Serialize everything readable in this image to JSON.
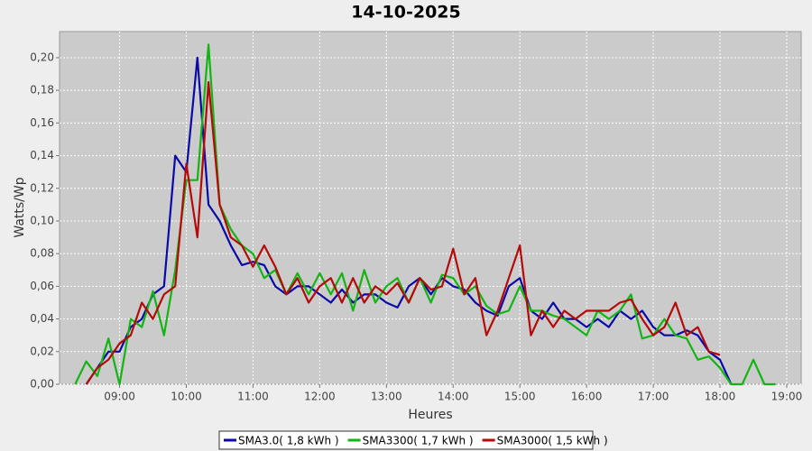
{
  "chart_data": {
    "type": "line",
    "title": "14-10-2025",
    "xlabel": "Heures",
    "ylabel": "Watts/Wp",
    "x": [
      500,
      510,
      520,
      530,
      540,
      550,
      560,
      570,
      580,
      590,
      600,
      610,
      620,
      630,
      640,
      650,
      660,
      670,
      680,
      690,
      700,
      710,
      720,
      730,
      740,
      750,
      760,
      770,
      780,
      790,
      800,
      810,
      820,
      830,
      840,
      850,
      860,
      870,
      880,
      890,
      900,
      910,
      920,
      930,
      940,
      950,
      960,
      970,
      980,
      990,
      1000,
      1010,
      1020,
      1030,
      1040,
      1050,
      1060,
      1070,
      1080,
      1090,
      1100,
      1110,
      1120,
      1130
    ],
    "series": [
      {
        "name": "SMA3.0( 1,8 kWh )",
        "color": "#0a0aa8",
        "values": [
          null,
          0.0,
          0.01,
          0.02,
          0.02,
          0.035,
          0.04,
          0.055,
          0.06,
          0.14,
          0.13,
          0.2,
          0.11,
          0.1,
          0.085,
          0.073,
          0.075,
          0.073,
          0.06,
          0.055,
          0.06,
          0.06,
          0.055,
          0.05,
          0.058,
          0.05,
          0.055,
          0.055,
          0.05,
          0.047,
          0.06,
          0.065,
          0.055,
          0.065,
          0.06,
          0.058,
          0.05,
          0.045,
          0.042,
          0.06,
          0.065,
          0.045,
          0.04,
          0.05,
          0.04,
          0.04,
          0.035,
          0.04,
          0.035,
          0.045,
          0.04,
          0.045,
          0.035,
          0.03,
          0.03,
          0.033,
          0.03,
          0.02,
          0.015,
          0.0,
          null,
          null,
          null,
          null
        ]
      },
      {
        "name": "SMA3300( 1,7 kWh )",
        "color": "#14b414",
        "values": [
          0.0,
          0.014,
          0.005,
          0.028,
          0.0,
          0.04,
          0.035,
          0.057,
          0.03,
          0.07,
          0.125,
          0.125,
          0.208,
          0.11,
          0.095,
          0.085,
          0.08,
          0.065,
          0.07,
          0.055,
          0.068,
          0.055,
          0.068,
          0.055,
          0.068,
          0.045,
          0.07,
          0.05,
          0.06,
          0.065,
          0.05,
          0.065,
          0.05,
          0.067,
          0.065,
          0.055,
          0.06,
          0.048,
          0.043,
          0.045,
          0.06,
          0.045,
          0.045,
          0.042,
          0.04,
          0.035,
          0.03,
          0.045,
          0.04,
          0.045,
          0.055,
          0.028,
          0.03,
          0.04,
          0.03,
          0.028,
          0.015,
          0.017,
          0.01,
          0.0,
          0.0,
          0.015,
          0.0,
          0.0
        ]
      },
      {
        "name": "SMA3000( 1,5 kWh )",
        "color": "#b40a0a",
        "values": [
          null,
          0.0,
          0.01,
          0.015,
          0.025,
          0.03,
          0.05,
          0.04,
          0.055,
          0.06,
          0.135,
          0.09,
          0.185,
          0.11,
          0.09,
          0.085,
          0.072,
          0.085,
          0.072,
          0.055,
          0.065,
          0.05,
          0.06,
          0.065,
          0.05,
          0.065,
          0.05,
          0.06,
          0.055,
          0.062,
          0.05,
          0.065,
          0.058,
          0.06,
          0.083,
          0.055,
          0.065,
          0.03,
          0.045,
          0.065,
          0.085,
          0.03,
          0.045,
          0.035,
          0.045,
          0.04,
          0.045,
          0.045,
          0.045,
          0.05,
          0.052,
          0.04,
          0.03,
          0.035,
          0.05,
          0.03,
          0.035,
          0.02,
          0.018,
          null,
          null,
          null,
          null,
          null
        ]
      }
    ],
    "xlim": [
      486,
      1153
    ],
    "xticks": [
      {
        "value": 540,
        "label": "09:00"
      },
      {
        "value": 600,
        "label": "10:00"
      },
      {
        "value": 660,
        "label": "11:00"
      },
      {
        "value": 720,
        "label": "12:00"
      },
      {
        "value": 780,
        "label": "13:00"
      },
      {
        "value": 840,
        "label": "14:00"
      },
      {
        "value": 900,
        "label": "15:00"
      },
      {
        "value": 960,
        "label": "16:00"
      },
      {
        "value": 1020,
        "label": "17:00"
      },
      {
        "value": 1080,
        "label": "18:00"
      },
      {
        "value": 1140,
        "label": "19:00"
      }
    ],
    "ylim": [
      0,
      0.216
    ],
    "yticks": [
      {
        "value": 0,
        "label": "0,00"
      },
      {
        "value": 0.02,
        "label": "0,02"
      },
      {
        "value": 0.04,
        "label": "0,04"
      },
      {
        "value": 0.06,
        "label": "0,06"
      },
      {
        "value": 0.08,
        "label": "0,08"
      },
      {
        "value": 0.1,
        "label": "0,10"
      },
      {
        "value": 0.12,
        "label": "0,12"
      },
      {
        "value": 0.14,
        "label": "0,14"
      },
      {
        "value": 0.16,
        "label": "0,16"
      },
      {
        "value": 0.18,
        "label": "0,18"
      },
      {
        "value": 0.2,
        "label": "0,20"
      }
    ],
    "grid": true,
    "legend": "bottom"
  }
}
